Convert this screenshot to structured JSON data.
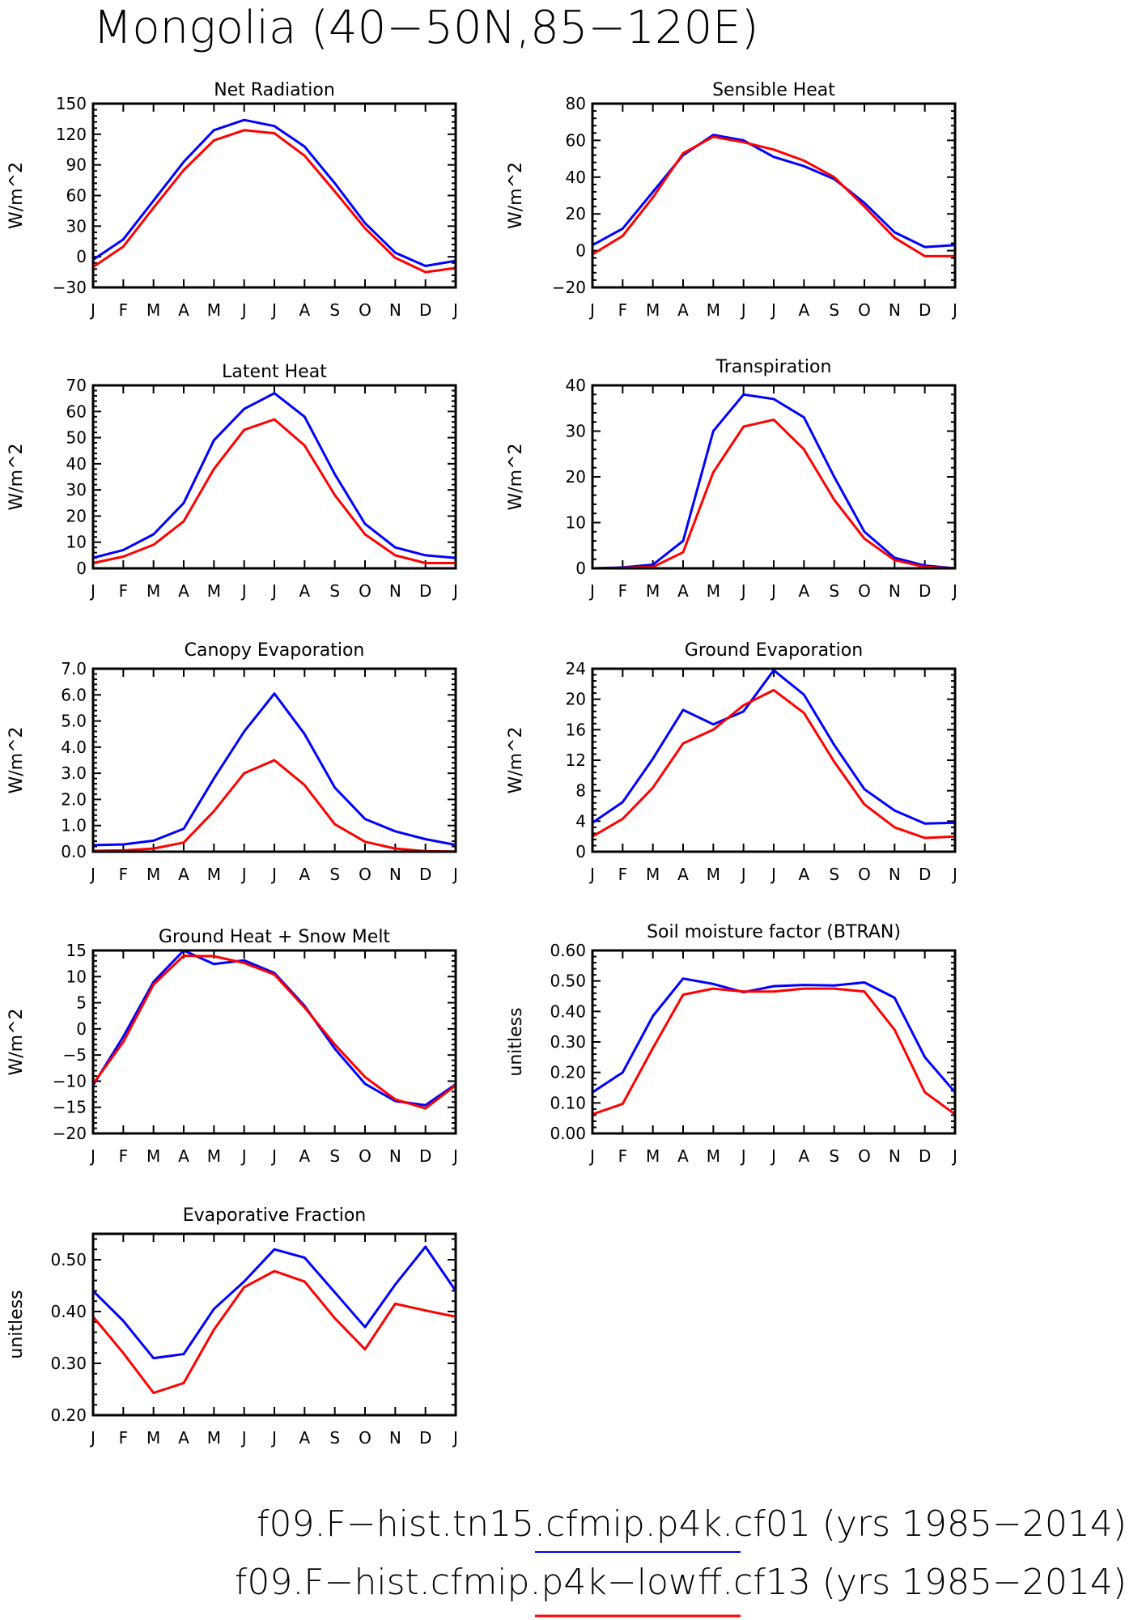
{
  "figure": {
    "title": "Mongolia (40−50N,85−120E)"
  },
  "legend": [
    {
      "label": "f09.F−hist.tn15.cfmip.p4k.cf01 (yrs 1985−2014)",
      "color": "#0000ff"
    },
    {
      "label": "f09.F−hist.cfmip.p4k−lowff.cf13 (yrs 1985−2014)",
      "color": "#ff0000"
    }
  ],
  "chart_data": [
    {
      "type": "line",
      "title": "Net Radiation",
      "ylabel": "W/m^2",
      "x": [
        "J",
        "F",
        "M",
        "A",
        "M",
        "J",
        "J",
        "A",
        "S",
        "O",
        "N",
        "D",
        "J"
      ],
      "ylim": [
        -30,
        150
      ],
      "yticks": [
        -30,
        0,
        30,
        60,
        90,
        120,
        150
      ],
      "ytick_labels": [
        "−30",
        "0",
        "30",
        "60",
        "90",
        "120",
        "150"
      ],
      "series": [
        {
          "color": "#0000ff",
          "values": [
            -3,
            17,
            55,
            93,
            124,
            134,
            128,
            108,
            72,
            33,
            4,
            -9,
            -4
          ]
        },
        {
          "color": "#ff0000",
          "values": [
            -10,
            10,
            48,
            85,
            114,
            124,
            121,
            99,
            64,
            28,
            -1,
            -15,
            -11
          ]
        }
      ]
    },
    {
      "type": "line",
      "title": "Sensible Heat",
      "ylabel": "W/m^2",
      "x": [
        "J",
        "F",
        "M",
        "A",
        "M",
        "J",
        "J",
        "A",
        "S",
        "O",
        "N",
        "D",
        "J"
      ],
      "ylim": [
        -20,
        80
      ],
      "yticks": [
        -20,
        0,
        20,
        40,
        60,
        80
      ],
      "ytick_labels": [
        "−20",
        "0",
        "20",
        "40",
        "60",
        "80"
      ],
      "series": [
        {
          "color": "#0000ff",
          "values": [
            3,
            12,
            32,
            52,
            63,
            60,
            51,
            46,
            39,
            26,
            10,
            2,
            3
          ]
        },
        {
          "color": "#ff0000",
          "values": [
            -2,
            8,
            29,
            53,
            62,
            59,
            55,
            49,
            40,
            24,
            7,
            -3,
            -3
          ]
        }
      ]
    },
    {
      "type": "line",
      "title": "Latent Heat",
      "ylabel": "W/m^2",
      "x": [
        "J",
        "F",
        "M",
        "A",
        "M",
        "J",
        "J",
        "A",
        "S",
        "O",
        "N",
        "D",
        "J"
      ],
      "ylim": [
        0,
        70
      ],
      "yticks": [
        0,
        10,
        20,
        30,
        40,
        50,
        60,
        70
      ],
      "ytick_labels": [
        "0",
        "10",
        "20",
        "30",
        "40",
        "50",
        "60",
        "70"
      ],
      "series": [
        {
          "color": "#0000ff",
          "values": [
            4,
            7,
            13,
            25,
            49,
            61,
            67,
            58,
            36,
            17,
            8,
            5,
            4
          ]
        },
        {
          "color": "#ff0000",
          "values": [
            2,
            4.5,
            9,
            18,
            38,
            53,
            57,
            47,
            28,
            13,
            5,
            2,
            2
          ]
        }
      ]
    },
    {
      "type": "line",
      "title": "Transpiration",
      "ylabel": "W/m^2",
      "x": [
        "J",
        "F",
        "M",
        "A",
        "M",
        "J",
        "J",
        "A",
        "S",
        "O",
        "N",
        "D",
        "J"
      ],
      "ylim": [
        0,
        40
      ],
      "yticks": [
        0,
        10,
        20,
        30,
        40
      ],
      "ytick_labels": [
        "0",
        "10",
        "20",
        "30",
        "40"
      ],
      "series": [
        {
          "color": "#0000ff",
          "values": [
            0,
            0.2,
            0.8,
            6,
            30,
            38,
            37,
            33,
            20,
            8,
            2.3,
            0.6,
            0
          ]
        },
        {
          "color": "#ff0000",
          "values": [
            0,
            0.1,
            0.3,
            3.5,
            21,
            31,
            32.5,
            26,
            15,
            6.5,
            1.8,
            0.3,
            0
          ]
        }
      ]
    },
    {
      "type": "line",
      "title": "Canopy Evaporation",
      "ylabel": "W/m^2",
      "x": [
        "J",
        "F",
        "M",
        "A",
        "M",
        "J",
        "J",
        "A",
        "S",
        "O",
        "N",
        "D",
        "J"
      ],
      "ylim": [
        0,
        7
      ],
      "yticks": [
        0,
        1,
        2,
        3,
        4,
        5,
        6,
        7
      ],
      "ytick_labels": [
        "0.0",
        "1.0",
        "2.0",
        "3.0",
        "4.0",
        "5.0",
        "6.0",
        "7.0"
      ],
      "series": [
        {
          "color": "#0000ff",
          "values": [
            0.25,
            0.28,
            0.42,
            0.88,
            2.8,
            4.6,
            6.05,
            4.5,
            2.45,
            1.25,
            0.78,
            0.48,
            0.26
          ]
        },
        {
          "color": "#ff0000",
          "values": [
            0.03,
            0.05,
            0.12,
            0.35,
            1.55,
            3.0,
            3.5,
            2.55,
            1.05,
            0.38,
            0.12,
            0.02,
            0.01
          ]
        }
      ]
    },
    {
      "type": "line",
      "title": "Ground Evaporation",
      "ylabel": "W/m^2",
      "x": [
        "J",
        "F",
        "M",
        "A",
        "M",
        "J",
        "J",
        "A",
        "S",
        "O",
        "N",
        "D",
        "J"
      ],
      "ylim": [
        0,
        24
      ],
      "yticks": [
        0,
        4,
        8,
        12,
        16,
        20,
        24
      ],
      "ytick_labels": [
        "0",
        "4",
        "8",
        "12",
        "16",
        "20",
        "24"
      ],
      "series": [
        {
          "color": "#0000ff",
          "values": [
            3.8,
            6.5,
            12.2,
            18.6,
            16.7,
            18.4,
            23.8,
            20.6,
            14.0,
            8.2,
            5.4,
            3.7,
            3.8
          ]
        },
        {
          "color": "#ff0000",
          "values": [
            2.0,
            4.3,
            8.4,
            14.2,
            16.0,
            19.2,
            21.2,
            18.2,
            11.8,
            6.2,
            3.2,
            1.8,
            2.0
          ]
        }
      ]
    },
    {
      "type": "line",
      "title": "Ground Heat + Snow Melt",
      "ylabel": "W/m^2",
      "x": [
        "J",
        "F",
        "M",
        "A",
        "M",
        "J",
        "J",
        "A",
        "S",
        "O",
        "N",
        "D",
        "J"
      ],
      "ylim": [
        -20,
        15
      ],
      "yticks": [
        -20,
        -15,
        -10,
        -5,
        0,
        5,
        10,
        15
      ],
      "ytick_labels": [
        "−20",
        "−15",
        "−10",
        "−5",
        "0",
        "5",
        "10",
        "15"
      ],
      "series": [
        {
          "color": "#0000ff",
          "values": [
            -10.8,
            -1.5,
            9.0,
            15.0,
            12.4,
            13.1,
            10.7,
            4.4,
            -3.8,
            -10.5,
            -13.8,
            -14.6,
            -10.6
          ]
        },
        {
          "color": "#ff0000",
          "values": [
            -10.5,
            -2.5,
            8.5,
            14.0,
            13.9,
            12.6,
            10.4,
            4.1,
            -3.0,
            -9.2,
            -13.5,
            -15.2,
            -10.8
          ]
        }
      ]
    },
    {
      "type": "line",
      "title": "Soil moisture factor (BTRAN)",
      "ylabel": "unitless",
      "x": [
        "J",
        "F",
        "M",
        "A",
        "M",
        "J",
        "J",
        "A",
        "S",
        "O",
        "N",
        "D",
        "J"
      ],
      "ylim": [
        0,
        0.6
      ],
      "yticks": [
        0,
        0.1,
        0.2,
        0.3,
        0.4,
        0.5,
        0.6
      ],
      "ytick_labels": [
        "0.00",
        "0.10",
        "0.20",
        "0.30",
        "0.40",
        "0.50",
        "0.60"
      ],
      "series": [
        {
          "color": "#0000ff",
          "values": [
            0.135,
            0.2,
            0.385,
            0.508,
            0.49,
            0.463,
            0.483,
            0.487,
            0.485,
            0.495,
            0.445,
            0.25,
            0.135
          ]
        },
        {
          "color": "#ff0000",
          "values": [
            0.063,
            0.097,
            0.28,
            0.455,
            0.475,
            0.465,
            0.465,
            0.475,
            0.475,
            0.465,
            0.34,
            0.135,
            0.063
          ]
        }
      ]
    },
    {
      "type": "line",
      "title": "Evaporative Fraction",
      "ylabel": "unitless",
      "x": [
        "J",
        "F",
        "M",
        "A",
        "M",
        "J",
        "J",
        "A",
        "S",
        "O",
        "N",
        "D",
        "J"
      ],
      "ylim": [
        0.2,
        0.55
      ],
      "yticks": [
        0.2,
        0.3,
        0.4,
        0.5
      ],
      "ytick_labels": [
        "0.20",
        "0.30",
        "0.40",
        "0.50"
      ],
      "series": [
        {
          "color": "#0000ff",
          "values": [
            0.44,
            0.382,
            0.31,
            0.318,
            0.405,
            0.458,
            0.52,
            0.504,
            0.437,
            0.37,
            0.452,
            0.525,
            0.44
          ]
        },
        {
          "color": "#ff0000",
          "values": [
            0.39,
            0.32,
            0.243,
            0.262,
            0.365,
            0.447,
            0.478,
            0.458,
            0.387,
            0.327,
            0.415,
            0.402,
            0.39
          ]
        }
      ]
    }
  ]
}
